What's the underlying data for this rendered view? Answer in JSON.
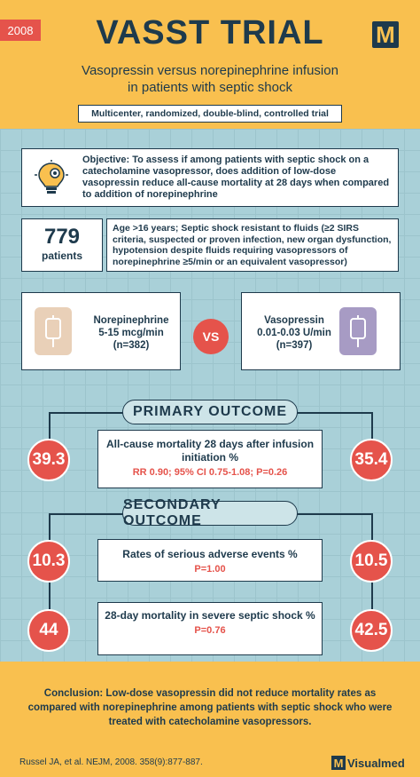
{
  "header": {
    "year": "2008",
    "title": "VASST TRIAL",
    "logo_letter": "M",
    "subtitle_line1": "Vasopressin versus norepinephrine infusion",
    "subtitle_line2": "in patients with septic shock",
    "design": "Multicenter, randomized, double-blind, controlled trial"
  },
  "objective": {
    "icon": "lightbulb-gear-icon",
    "text": "Objective: To assess if among patients with septic shock on a catecholamine vasopressor, does addition of low-dose vasopressin reduce all-cause mortality at 28 days when compared to addition of norepinephrine"
  },
  "population": {
    "count": "779",
    "count_label": "patients",
    "criteria": "Age >16 years; Septic shock resistant to fluids (≥2 SIRS criteria, suspected or proven infection, new organ dysfunction, hypotension despite fluids requiring vasopressors of norepinephrine ≥5/min or an equivalent vasopressor)"
  },
  "arms": {
    "left": {
      "name": "Norepinephrine",
      "dose": "5-15 mcg/min",
      "n": "(n=382)",
      "icon": "iv-bag-icon"
    },
    "vs": "VS",
    "right": {
      "name": "Vasopressin",
      "dose": "0.01-0.03 U/min",
      "n": "(n=397)",
      "icon": "iv-bag-icon"
    }
  },
  "primary": {
    "heading": "PRIMARY OUTCOME",
    "left_value": "39.3",
    "right_value": "35.4",
    "title": "All-cause mortality 28 days after infusion initiation %",
    "stat": "RR 0.90; 95% CI 0.75-1.08; P=0.26"
  },
  "secondary": {
    "heading": "SECONDARY OUTCOME",
    "items": [
      {
        "left_value": "10.3",
        "right_value": "10.5",
        "title": "Rates of serious adverse events %",
        "stat": "P=1.00"
      },
      {
        "left_value": "44",
        "right_value": "42.5",
        "title": "28-day mortality in severe septic shock %",
        "stat": "P=0.76"
      }
    ]
  },
  "conclusion": "Conclusion: Low-dose vasopressin did not reduce mortality rates as compared with norepinephrine among patients with septic shock who were treated with catecholamine vasopressors.",
  "footer": {
    "citation": "Russel JA, et al. NEJM, 2008. 358(9):877-887.",
    "brand_letter": "M",
    "brand_name": "Visualmed"
  },
  "colors": {
    "navy": "#1e3a4c",
    "yellow": "#f9c04f",
    "red": "#e5534b",
    "teal": "#a9d0d8"
  }
}
